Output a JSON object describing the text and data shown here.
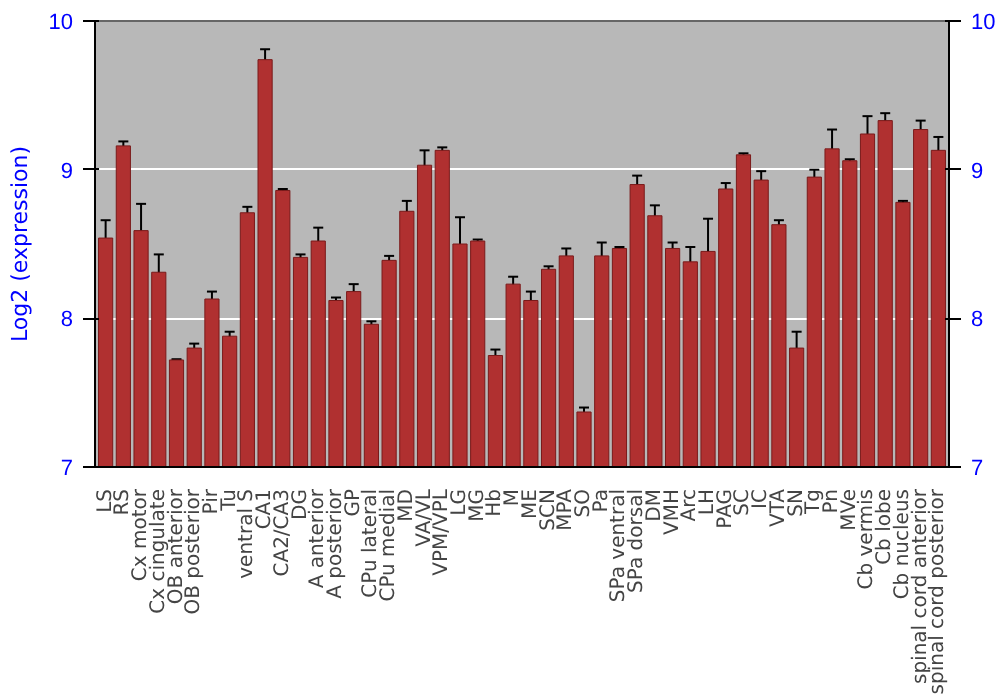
{
  "chart_data": {
    "type": "bar",
    "ylabel": "Log2 (expression)",
    "categories": [
      "LS",
      "RS",
      "Cx motor",
      "Cx cingulate",
      "OB anterior",
      "OB posterior",
      "Pir",
      "Tu",
      "ventral S",
      "CA1",
      "CA2/CA3",
      "DG",
      "A anterior",
      "A posterior",
      "GP",
      "CPu lateral",
      "CPu medial",
      "MD",
      "VA/VL",
      "VPM/VPL",
      "LG",
      "MG",
      "Hb",
      "M",
      "ME",
      "SCN",
      "MPA",
      "SO",
      "Pa",
      "SPa ventral",
      "SPa dorsal",
      "DM",
      "VMH",
      "Arc",
      "LH",
      "PAG",
      "SC",
      "IC",
      "VTA",
      "SN",
      "Tg",
      "Pn",
      "MVe",
      "Cb vermis",
      "Cb lobe",
      "Cb nucleus",
      "spinal cord anterior",
      "spinal cord posterior"
    ],
    "values": [
      8.54,
      9.16,
      8.59,
      8.31,
      7.72,
      7.8,
      8.13,
      7.88,
      8.71,
      9.74,
      8.86,
      8.41,
      8.52,
      8.12,
      8.18,
      7.96,
      8.39,
      8.72,
      9.03,
      9.13,
      8.5,
      8.52,
      7.75,
      8.23,
      8.12,
      8.33,
      8.42,
      7.37,
      8.42,
      8.47,
      8.9,
      8.69,
      8.47,
      8.38,
      8.45,
      8.87,
      9.1,
      8.93,
      8.63,
      7.8,
      8.95,
      9.14,
      9.06,
      9.24,
      9.33,
      8.78,
      9.27,
      9.13
    ],
    "errors": [
      0.12,
      0.03,
      0.18,
      0.12,
      0.005,
      0.03,
      0.05,
      0.03,
      0.04,
      0.07,
      0.01,
      0.02,
      0.09,
      0.02,
      0.05,
      0.02,
      0.03,
      0.07,
      0.1,
      0.02,
      0.18,
      0.01,
      0.04,
      0.05,
      0.06,
      0.02,
      0.05,
      0.03,
      0.09,
      0.01,
      0.06,
      0.07,
      0.04,
      0.1,
      0.22,
      0.04,
      0.01,
      0.06,
      0.03,
      0.11,
      0.05,
      0.13,
      0.01,
      0.12,
      0.05,
      0.01,
      0.06,
      0.09
    ],
    "color": "#b03030",
    "ylim": [
      7,
      10
    ],
    "yticks": [
      7,
      8,
      9,
      10
    ],
    "y2lim": [
      7,
      10
    ],
    "y2ticks": [
      7,
      8,
      9,
      10
    ],
    "grid": "y"
  }
}
